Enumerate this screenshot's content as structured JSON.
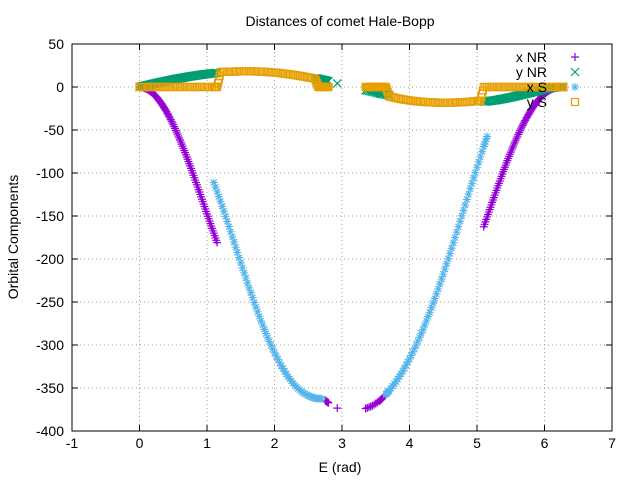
{
  "chart_data": {
    "type": "scatter",
    "title": "Distances of comet Hale-Bopp",
    "xlabel": "E (rad)",
    "ylabel": "Orbital Components",
    "xlim": [
      -1,
      7
    ],
    "ylim": [
      -400,
      50
    ],
    "x_ticks": [
      -1,
      0,
      1,
      2,
      3,
      4,
      5,
      6,
      7
    ],
    "y_ticks": [
      -400,
      -350,
      -300,
      -250,
      -200,
      -150,
      -100,
      -50,
      0,
      50
    ],
    "x_tick_labels": [
      "-1",
      "0",
      "1",
      "2",
      "3",
      "4",
      "5",
      "6",
      "7"
    ],
    "y_tick_labels": [
      "-400",
      "-350",
      "-300",
      "-250",
      "-200",
      "-150",
      "-100",
      "-50",
      "0",
      "50"
    ],
    "grid": true,
    "legend_position": "top-right",
    "series": [
      {
        "name": "x NR",
        "marker": "plus",
        "color": "#9400d3",
        "points": [
          [
            0.0,
            0
          ],
          [
            0.05,
            -0.5
          ],
          [
            0.1,
            -1.9
          ],
          [
            0.15,
            -4.2
          ],
          [
            0.2,
            -7.4
          ],
          [
            0.25,
            -11.5
          ],
          [
            0.3,
            -16.4
          ],
          [
            0.35,
            -22.2
          ],
          [
            0.4,
            -28.7
          ],
          [
            0.45,
            -35.9
          ],
          [
            0.5,
            -43.9
          ],
          [
            0.55,
            -52.5
          ],
          [
            0.6,
            -61.6
          ],
          [
            0.65,
            -71.3
          ],
          [
            0.7,
            -81.4
          ],
          [
            0.75,
            -91.9
          ],
          [
            0.8,
            -102.7
          ],
          [
            0.85,
            -113.7
          ],
          [
            0.9,
            -124.9
          ],
          [
            0.95,
            -136.2
          ],
          [
            1.0,
            -147.5
          ],
          [
            1.05,
            -158.8
          ],
          [
            1.1,
            -170.0
          ],
          [
            1.15,
            -181.0
          ],
          [
            2.75,
            -364.6
          ],
          [
            2.8,
            -367.2
          ],
          [
            2.93,
            -373.4
          ],
          [
            3.35,
            -373.9
          ],
          [
            3.45,
            -370.7
          ],
          [
            3.55,
            -365.4
          ],
          [
            3.6,
            -361.9
          ],
          [
            3.7,
            -353.0
          ],
          [
            5.1,
            -162.5
          ],
          [
            5.15,
            -151.1
          ],
          [
            5.2,
            -139.8
          ],
          [
            5.25,
            -128.6
          ],
          [
            5.3,
            -117.5
          ],
          [
            5.35,
            -106.6
          ],
          [
            5.4,
            -95.9
          ],
          [
            5.45,
            -85.6
          ],
          [
            5.5,
            -75.7
          ],
          [
            5.55,
            -66.2
          ],
          [
            5.6,
            -57.2
          ],
          [
            5.65,
            -48.7
          ],
          [
            5.7,
            -40.9
          ],
          [
            5.75,
            -33.7
          ],
          [
            5.8,
            -27.1
          ],
          [
            5.85,
            -21.2
          ],
          [
            5.9,
            -16.0
          ],
          [
            5.95,
            -11.6
          ],
          [
            6.0,
            -7.9
          ],
          [
            6.05,
            -4.9
          ],
          [
            6.1,
            -2.7
          ],
          [
            6.15,
            -1.1
          ],
          [
            6.2,
            -0.3
          ],
          [
            6.25,
            0
          ],
          [
            6.28,
            0
          ]
        ]
      },
      {
        "name": "y NR",
        "marker": "cross",
        "color": "#009e73",
        "points": [
          [
            0.0,
            0
          ],
          [
            0.05,
            0.9
          ],
          [
            0.1,
            1.8
          ],
          [
            0.15,
            2.7
          ],
          [
            0.2,
            3.6
          ],
          [
            0.25,
            4.5
          ],
          [
            0.3,
            5.4
          ],
          [
            0.35,
            6.2
          ],
          [
            0.4,
            7.0
          ],
          [
            0.45,
            7.9
          ],
          [
            0.5,
            8.7
          ],
          [
            0.55,
            9.5
          ],
          [
            0.6,
            10.2
          ],
          [
            0.65,
            10.9
          ],
          [
            0.7,
            11.6
          ],
          [
            0.75,
            12.3
          ],
          [
            0.8,
            12.9
          ],
          [
            0.85,
            13.5
          ],
          [
            0.9,
            14.1
          ],
          [
            0.95,
            14.6
          ],
          [
            1.0,
            15.1
          ],
          [
            1.05,
            15.6
          ],
          [
            1.1,
            16.0
          ],
          [
            1.15,
            16.4
          ],
          [
            2.6,
            10.3
          ],
          [
            2.65,
            9.5
          ],
          [
            2.7,
            8.6
          ],
          [
            2.75,
            7.7
          ],
          [
            2.8,
            6.8
          ],
          [
            2.93,
            4.1
          ],
          [
            3.35,
            -3.7
          ],
          [
            3.45,
            -5.6
          ],
          [
            3.55,
            -7.4
          ],
          [
            3.6,
            -8.2
          ],
          [
            3.7,
            -9.9
          ],
          [
            5.1,
            -17.0
          ],
          [
            5.15,
            -16.7
          ],
          [
            5.2,
            -16.2
          ],
          [
            5.25,
            -15.7
          ],
          [
            5.3,
            -15.1
          ],
          [
            5.35,
            -14.3
          ],
          [
            5.4,
            -13.6
          ],
          [
            5.45,
            -12.8
          ],
          [
            5.5,
            -12.0
          ],
          [
            5.55,
            -11.1
          ],
          [
            5.6,
            -10.2
          ],
          [
            5.65,
            -9.3
          ],
          [
            5.7,
            -8.3
          ],
          [
            5.75,
            -7.4
          ],
          [
            5.8,
            -6.4
          ],
          [
            5.85,
            -5.4
          ],
          [
            5.9,
            -4.5
          ],
          [
            5.95,
            -3.5
          ],
          [
            6.0,
            -2.6
          ],
          [
            6.05,
            -1.8
          ],
          [
            6.1,
            -1.1
          ],
          [
            6.15,
            -0.5
          ],
          [
            6.2,
            -0.1
          ],
          [
            6.25,
            0
          ],
          [
            6.28,
            0
          ]
        ]
      },
      {
        "name": "x S",
        "marker": "star",
        "color": "#56b4e9",
        "points": [
          [
            1.1,
            -111.0
          ],
          [
            1.2,
            -132.9
          ],
          [
            1.3,
            -156.3
          ],
          [
            1.4,
            -180.3
          ],
          [
            1.5,
            -204.4
          ],
          [
            1.6,
            -228.0
          ],
          [
            1.7,
            -250.7
          ],
          [
            1.8,
            -272.0
          ],
          [
            1.9,
            -291.6
          ],
          [
            2.0,
            -309.1
          ],
          [
            2.1,
            -324.3
          ],
          [
            2.2,
            -336.9
          ],
          [
            2.3,
            -346.9
          ],
          [
            2.4,
            -354.2
          ],
          [
            2.5,
            -359.0
          ],
          [
            2.6,
            -361.9
          ],
          [
            2.7,
            -362.6
          ],
          [
            3.65,
            -357.5
          ],
          [
            3.7,
            -353.0
          ],
          [
            3.8,
            -342.6
          ],
          [
            3.9,
            -330.4
          ],
          [
            4.0,
            -316.2
          ],
          [
            4.1,
            -300.0
          ],
          [
            4.2,
            -281.9
          ],
          [
            4.3,
            -262.0
          ],
          [
            4.4,
            -240.5
          ],
          [
            4.5,
            -217.6
          ],
          [
            4.6,
            -193.6
          ],
          [
            4.7,
            -168.8
          ],
          [
            4.8,
            -143.5
          ],
          [
            4.9,
            -118.2
          ],
          [
            5.0,
            -93.3
          ],
          [
            5.1,
            -69.2
          ],
          [
            5.15,
            -57.6
          ]
        ]
      },
      {
        "name": "y S",
        "marker": "square",
        "color": "#e69f00",
        "points": [
          [
            0.0,
            0
          ],
          [
            0.1,
            0
          ],
          [
            0.2,
            0
          ],
          [
            0.3,
            0
          ],
          [
            0.4,
            0
          ],
          [
            0.5,
            0
          ],
          [
            0.6,
            0
          ],
          [
            0.7,
            0
          ],
          [
            0.8,
            0
          ],
          [
            0.9,
            0
          ],
          [
            1.0,
            0
          ],
          [
            1.1,
            0
          ],
          [
            1.15,
            0
          ],
          [
            1.2,
            17.4
          ],
          [
            1.3,
            17.7
          ],
          [
            1.4,
            18.0
          ],
          [
            1.5,
            18.1
          ],
          [
            1.6,
            18.2
          ],
          [
            1.7,
            18.1
          ],
          [
            1.8,
            17.9
          ],
          [
            1.9,
            17.4
          ],
          [
            2.0,
            16.8
          ],
          [
            2.1,
            16.0
          ],
          [
            2.2,
            15.0
          ],
          [
            2.3,
            13.9
          ],
          [
            2.4,
            12.6
          ],
          [
            2.5,
            11.1
          ],
          [
            2.6,
            9.9
          ],
          [
            2.65,
            0
          ],
          [
            2.7,
            0
          ],
          [
            2.75,
            0
          ],
          [
            2.8,
            0
          ],
          [
            3.35,
            0
          ],
          [
            3.4,
            0
          ],
          [
            3.45,
            0
          ],
          [
            3.5,
            0
          ],
          [
            3.55,
            0
          ],
          [
            3.6,
            0
          ],
          [
            3.65,
            0
          ],
          [
            3.7,
            -11.0
          ],
          [
            3.8,
            -12.9
          ],
          [
            3.9,
            -14.4
          ],
          [
            4.0,
            -15.6
          ],
          [
            4.1,
            -16.6
          ],
          [
            4.2,
            -17.3
          ],
          [
            4.3,
            -17.8
          ],
          [
            4.4,
            -18.1
          ],
          [
            4.5,
            -18.2
          ],
          [
            4.6,
            -18.2
          ],
          [
            4.7,
            -18.0
          ],
          [
            4.8,
            -17.6
          ],
          [
            4.9,
            -17.1
          ],
          [
            5.0,
            -16.4
          ],
          [
            5.05,
            -16.0
          ],
          [
            5.1,
            0
          ],
          [
            5.2,
            0
          ],
          [
            5.3,
            0
          ],
          [
            5.4,
            0
          ],
          [
            5.5,
            0
          ],
          [
            5.6,
            0
          ],
          [
            5.7,
            0
          ],
          [
            5.8,
            0
          ],
          [
            5.9,
            0
          ],
          [
            6.0,
            0
          ],
          [
            6.1,
            0
          ],
          [
            6.2,
            0
          ],
          [
            6.28,
            0
          ]
        ]
      }
    ]
  }
}
